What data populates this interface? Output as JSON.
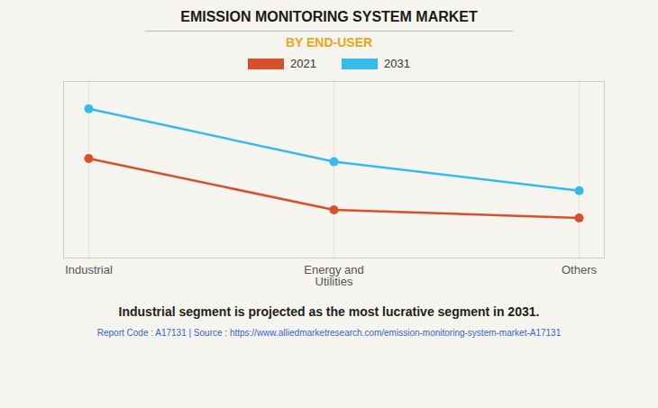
{
  "chart_data": {
    "type": "line",
    "title": "EMISSION MONITORING SYSTEM MARKET",
    "subtitle": "BY END-USER",
    "categories": [
      "Industrial",
      "Energy and\nUtilities",
      "Others"
    ],
    "series": [
      {
        "name": "2021",
        "color": "#d94f2a",
        "values": [
          0.62,
          0.3,
          0.25
        ]
      },
      {
        "name": "2031",
        "color": "#33bbee",
        "values": [
          0.93,
          0.6,
          0.42
        ]
      }
    ],
    "ylim": [
      0,
      1.1
    ],
    "yticks": [],
    "grid": true,
    "legend": "top",
    "tick_labels": "x",
    "marker": "circle",
    "annotations": [
      "Industrial segment is projected as the most lucrative segment in 2031.",
      "Report Code : A17131  |  Source : https://www.alliedmarketresearch.com/emission-monitoring-system-market-A17131"
    ]
  }
}
